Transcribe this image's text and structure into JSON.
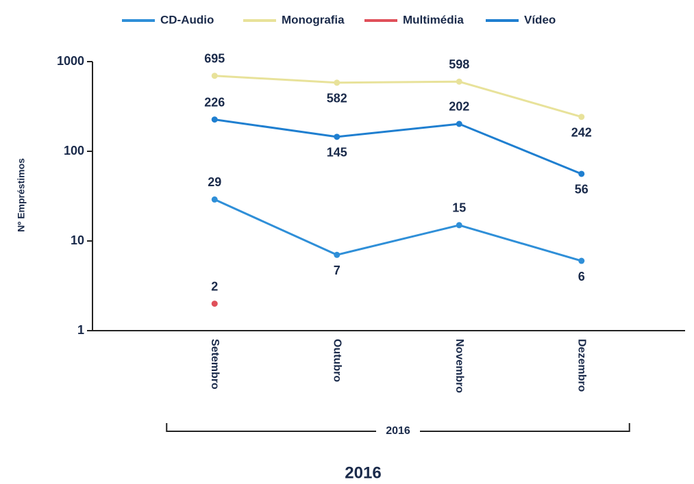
{
  "chart_data": {
    "type": "line",
    "y_scale": "log",
    "legend": "top",
    "x_label": "2016",
    "group_label": "2016",
    "y_label": "Nº Empréstimos",
    "categories": [
      "Setembro",
      "Outubro",
      "Novembro",
      "Dezembro"
    ],
    "ylim": [
      1,
      1000
    ],
    "yticks": [
      1,
      10,
      100,
      1000
    ],
    "series": [
      {
        "name": "CD-Audio",
        "color": "#2f8fd8",
        "values": [
          29,
          7,
          15,
          6
        ]
      },
      {
        "name": "Monografia",
        "color": "#e8e29a",
        "values": [
          695,
          582,
          598,
          242
        ]
      },
      {
        "name": "Multimédia",
        "color": "#e0505a",
        "values": [
          2,
          null,
          null,
          null
        ]
      },
      {
        "name": "Vídeo",
        "color": "#1f7fd0",
        "values": [
          226,
          145,
          202,
          56
        ]
      }
    ]
  }
}
